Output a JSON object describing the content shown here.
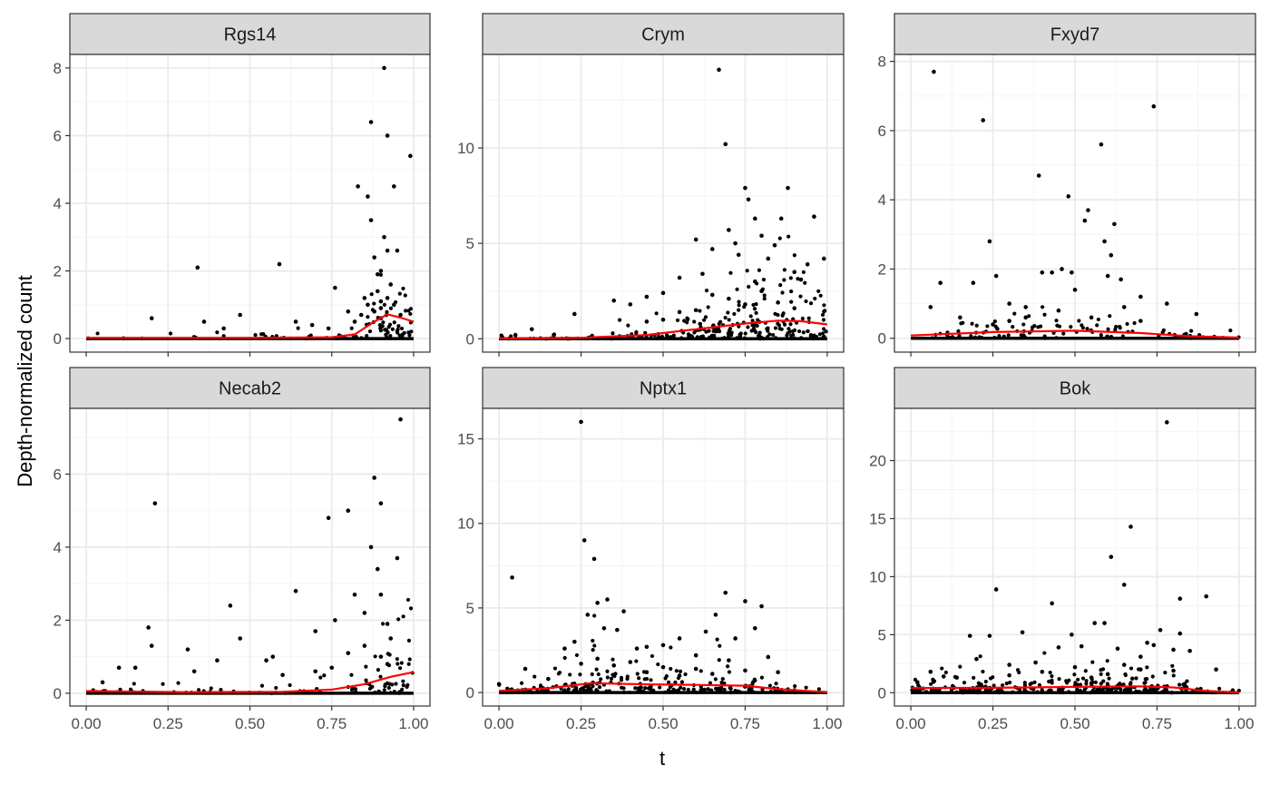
{
  "figure": {
    "ylabel": "Depth-normalized count",
    "xlabel": "t",
    "colors": {
      "points": "#000000",
      "smooth": "#ff0000",
      "strip": "#d9d9d9",
      "grid_major": "#ebebeb",
      "grid_minor": "#f5f5f5",
      "border": "#333333"
    }
  },
  "chart_data": [
    {
      "type": "scatter",
      "panel": "Rgs14",
      "xlim": [
        0,
        1
      ],
      "ylim": [
        -0.4,
        8.4
      ],
      "x_ticks": [
        0,
        0.25,
        0.5,
        0.75,
        1
      ],
      "x_tick_labels": [
        "0.00",
        "0.25",
        "0.50",
        "0.75",
        "1.00"
      ],
      "y_ticks": [
        0,
        2,
        4,
        6,
        8
      ],
      "y_tick_labels": [
        "0",
        "2",
        "4",
        "6",
        "8"
      ],
      "x_axis_labels_shown": false,
      "points": [
        [
          0.2,
          0.6
        ],
        [
          0.34,
          2.1
        ],
        [
          0.36,
          0.5
        ],
        [
          0.42,
          0.3
        ],
        [
          0.47,
          0.7
        ],
        [
          0.59,
          2.2
        ],
        [
          0.64,
          0.5
        ],
        [
          0.69,
          0.4
        ],
        [
          0.74,
          0.3
        ],
        [
          0.76,
          1.5
        ],
        [
          0.8,
          0.8
        ],
        [
          0.82,
          0.5
        ],
        [
          0.83,
          4.5
        ],
        [
          0.85,
          1.2
        ],
        [
          0.86,
          4.2
        ],
        [
          0.87,
          6.4
        ],
        [
          0.87,
          3.5
        ],
        [
          0.88,
          2.4
        ],
        [
          0.89,
          1.9
        ],
        [
          0.89,
          1.4
        ],
        [
          0.9,
          1.1
        ],
        [
          0.9,
          0.9
        ],
        [
          0.91,
          8.0
        ],
        [
          0.91,
          3.0
        ],
        [
          0.92,
          6.0
        ],
        [
          0.92,
          2.6
        ],
        [
          0.93,
          1.6
        ],
        [
          0.94,
          4.5
        ],
        [
          0.94,
          1.0
        ],
        [
          0.95,
          2.6
        ],
        [
          0.96,
          0.7
        ],
        [
          0.99,
          5.4
        ],
        [
          0.88,
          0.8
        ],
        [
          0.9,
          0.6
        ],
        [
          0.86,
          1.0
        ],
        [
          0.84,
          0.7
        ],
        [
          0.9,
          2.0
        ],
        [
          0.92,
          1.2
        ]
      ],
      "smooth": [
        [
          0.0,
          0.02
        ],
        [
          0.5,
          0.02
        ],
        [
          0.75,
          0.04
        ],
        [
          0.82,
          0.12
        ],
        [
          0.88,
          0.5
        ],
        [
          0.92,
          0.72
        ],
        [
          0.96,
          0.62
        ],
        [
          1.0,
          0.5
        ]
      ]
    },
    {
      "type": "scatter",
      "panel": "Crym",
      "xlim": [
        0,
        1
      ],
      "ylim": [
        -0.7,
        14.9
      ],
      "x_ticks": [
        0,
        0.25,
        0.5,
        0.75,
        1
      ],
      "x_tick_labels": [
        "0.00",
        "0.25",
        "0.50",
        "0.75",
        "1.00"
      ],
      "y_ticks": [
        0,
        5,
        10
      ],
      "y_tick_labels": [
        "0",
        "5",
        "10"
      ],
      "x_axis_labels_shown": false,
      "points": [
        [
          0.05,
          0.2
        ],
        [
          0.1,
          0.5
        ],
        [
          0.23,
          1.3
        ],
        [
          0.35,
          2.0
        ],
        [
          0.4,
          1.8
        ],
        [
          0.45,
          2.2
        ],
        [
          0.5,
          2.4
        ],
        [
          0.55,
          3.2
        ],
        [
          0.6,
          5.2
        ],
        [
          0.62,
          3.4
        ],
        [
          0.65,
          4.7
        ],
        [
          0.67,
          14.1
        ],
        [
          0.69,
          10.2
        ],
        [
          0.7,
          5.7
        ],
        [
          0.72,
          5.0
        ],
        [
          0.73,
          4.4
        ],
        [
          0.75,
          7.9
        ],
        [
          0.76,
          7.3
        ],
        [
          0.78,
          6.3
        ],
        [
          0.8,
          5.4
        ],
        [
          0.82,
          4.2
        ],
        [
          0.84,
          4.9
        ],
        [
          0.86,
          6.3
        ],
        [
          0.88,
          7.9
        ],
        [
          0.9,
          3.5
        ],
        [
          0.92,
          3.1
        ],
        [
          0.94,
          3.9
        ],
        [
          0.96,
          6.4
        ],
        [
          0.99,
          4.2
        ],
        [
          0.5,
          1.0
        ],
        [
          0.6,
          1.5
        ],
        [
          0.7,
          2.1
        ],
        [
          0.75,
          1.8
        ],
        [
          0.8,
          2.5
        ],
        [
          0.85,
          1.9
        ],
        [
          0.9,
          1.6
        ],
        [
          0.65,
          2.3
        ],
        [
          0.55,
          1.4
        ],
        [
          0.45,
          0.9
        ],
        [
          0.78,
          3.0
        ]
      ],
      "smooth": [
        [
          0.0,
          0.02
        ],
        [
          0.25,
          0.05
        ],
        [
          0.45,
          0.2
        ],
        [
          0.6,
          0.5
        ],
        [
          0.75,
          0.8
        ],
        [
          0.85,
          0.95
        ],
        [
          0.92,
          0.92
        ],
        [
          1.0,
          0.75
        ]
      ]
    },
    {
      "type": "scatter",
      "panel": "Fxyd7",
      "xlim": [
        0,
        1
      ],
      "ylim": [
        -0.4,
        8.2
      ],
      "x_ticks": [
        0,
        0.25,
        0.5,
        0.75,
        1
      ],
      "x_tick_labels": [
        "0.00",
        "0.25",
        "0.50",
        "0.75",
        "1.00"
      ],
      "y_ticks": [
        0,
        2,
        4,
        6,
        8
      ],
      "y_tick_labels": [
        "0",
        "2",
        "4",
        "6",
        "8"
      ],
      "x_axis_labels_shown": false,
      "points": [
        [
          0.07,
          7.7
        ],
        [
          0.09,
          1.6
        ],
        [
          0.06,
          0.9
        ],
        [
          0.15,
          0.6
        ],
        [
          0.19,
          1.6
        ],
        [
          0.22,
          6.3
        ],
        [
          0.24,
          2.8
        ],
        [
          0.26,
          1.8
        ],
        [
          0.3,
          1.0
        ],
        [
          0.35,
          0.9
        ],
        [
          0.39,
          4.7
        ],
        [
          0.4,
          1.9
        ],
        [
          0.43,
          1.9
        ],
        [
          0.46,
          2.0
        ],
        [
          0.48,
          4.1
        ],
        [
          0.49,
          1.9
        ],
        [
          0.53,
          3.4
        ],
        [
          0.54,
          3.7
        ],
        [
          0.58,
          5.6
        ],
        [
          0.59,
          2.8
        ],
        [
          0.6,
          1.8
        ],
        [
          0.61,
          2.4
        ],
        [
          0.62,
          3.3
        ],
        [
          0.64,
          1.7
        ],
        [
          0.7,
          1.2
        ],
        [
          0.74,
          6.7
        ],
        [
          0.78,
          1.0
        ],
        [
          0.87,
          0.7
        ],
        [
          0.3,
          0.5
        ],
        [
          0.45,
          0.8
        ],
        [
          0.5,
          1.4
        ],
        [
          0.55,
          0.6
        ],
        [
          0.65,
          0.9
        ],
        [
          0.7,
          0.5
        ],
        [
          0.25,
          0.4
        ],
        [
          0.35,
          0.6
        ]
      ],
      "smooth": [
        [
          0.0,
          0.08
        ],
        [
          0.25,
          0.18
        ],
        [
          0.5,
          0.22
        ],
        [
          0.7,
          0.15
        ],
        [
          0.85,
          0.06
        ],
        [
          1.0,
          0.02
        ]
      ]
    },
    {
      "type": "scatter",
      "panel": "Necab2",
      "xlim": [
        0,
        1
      ],
      "ylim": [
        -0.35,
        7.8
      ],
      "x_ticks": [
        0,
        0.25,
        0.5,
        0.75,
        1
      ],
      "x_tick_labels": [
        "0.00",
        "0.25",
        "0.50",
        "0.75",
        "1.00"
      ],
      "y_ticks": [
        0,
        2,
        4,
        6
      ],
      "y_tick_labels": [
        "0",
        "2",
        "4",
        "6"
      ],
      "x_axis_labels_shown": true,
      "points": [
        [
          0.05,
          0.3
        ],
        [
          0.1,
          0.7
        ],
        [
          0.15,
          0.7
        ],
        [
          0.19,
          1.8
        ],
        [
          0.2,
          1.3
        ],
        [
          0.21,
          5.2
        ],
        [
          0.31,
          1.2
        ],
        [
          0.33,
          0.6
        ],
        [
          0.4,
          0.9
        ],
        [
          0.44,
          2.4
        ],
        [
          0.47,
          1.5
        ],
        [
          0.55,
          0.9
        ],
        [
          0.57,
          1.0
        ],
        [
          0.64,
          2.8
        ],
        [
          0.7,
          1.7
        ],
        [
          0.74,
          4.8
        ],
        [
          0.76,
          2.0
        ],
        [
          0.8,
          5.0
        ],
        [
          0.82,
          2.7
        ],
        [
          0.85,
          2.2
        ],
        [
          0.87,
          4.0
        ],
        [
          0.88,
          5.9
        ],
        [
          0.9,
          5.2
        ],
        [
          0.89,
          3.4
        ],
        [
          0.9,
          2.7
        ],
        [
          0.92,
          1.9
        ],
        [
          0.93,
          1.5
        ],
        [
          0.95,
          3.7
        ],
        [
          0.96,
          7.5
        ],
        [
          0.9,
          1.0
        ],
        [
          0.85,
          1.3
        ],
        [
          0.8,
          1.1
        ],
        [
          0.92,
          0.8
        ],
        [
          0.75,
          0.7
        ],
        [
          0.7,
          0.6
        ],
        [
          0.6,
          0.5
        ]
      ],
      "smooth": [
        [
          0.0,
          0.06
        ],
        [
          0.3,
          0.03
        ],
        [
          0.6,
          0.04
        ],
        [
          0.75,
          0.1
        ],
        [
          0.85,
          0.25
        ],
        [
          0.93,
          0.45
        ],
        [
          1.0,
          0.58
        ]
      ]
    },
    {
      "type": "scatter",
      "panel": "Nptx1",
      "xlim": [
        0,
        1
      ],
      "ylim": [
        -0.8,
        16.8
      ],
      "x_ticks": [
        0,
        0.25,
        0.5,
        0.75,
        1
      ],
      "x_tick_labels": [
        "0.00",
        "0.25",
        "0.50",
        "0.75",
        "1.00"
      ],
      "y_ticks": [
        0,
        5,
        10,
        15
      ],
      "y_tick_labels": [
        "0",
        "5",
        "10",
        "15"
      ],
      "x_axis_labels_shown": true,
      "points": [
        [
          0.0,
          0.5
        ],
        [
          0.04,
          6.8
        ],
        [
          0.08,
          1.4
        ],
        [
          0.15,
          0.8
        ],
        [
          0.2,
          2.6
        ],
        [
          0.23,
          3.0
        ],
        [
          0.25,
          16.0
        ],
        [
          0.26,
          9.0
        ],
        [
          0.27,
          4.6
        ],
        [
          0.29,
          7.9
        ],
        [
          0.3,
          5.3
        ],
        [
          0.32,
          3.8
        ],
        [
          0.33,
          5.5
        ],
        [
          0.36,
          3.7
        ],
        [
          0.38,
          4.8
        ],
        [
          0.42,
          2.6
        ],
        [
          0.45,
          2.7
        ],
        [
          0.5,
          2.8
        ],
        [
          0.55,
          3.2
        ],
        [
          0.6,
          2.2
        ],
        [
          0.63,
          3.6
        ],
        [
          0.66,
          4.6
        ],
        [
          0.69,
          5.9
        ],
        [
          0.72,
          3.2
        ],
        [
          0.75,
          5.4
        ],
        [
          0.78,
          3.8
        ],
        [
          0.8,
          5.1
        ],
        [
          0.82,
          2.1
        ],
        [
          0.85,
          1.2
        ],
        [
          0.3,
          2.0
        ],
        [
          0.4,
          1.8
        ],
        [
          0.5,
          1.5
        ],
        [
          0.6,
          1.4
        ],
        [
          0.7,
          1.9
        ],
        [
          0.25,
          1.7
        ],
        [
          0.35,
          1.6
        ],
        [
          0.45,
          1.2
        ],
        [
          0.55,
          1.0
        ],
        [
          0.65,
          1.1
        ],
        [
          0.75,
          1.3
        ]
      ],
      "smooth": [
        [
          0.0,
          0.1
        ],
        [
          0.15,
          0.25
        ],
        [
          0.28,
          0.55
        ],
        [
          0.45,
          0.48
        ],
        [
          0.6,
          0.45
        ],
        [
          0.75,
          0.4
        ],
        [
          0.85,
          0.2
        ],
        [
          1.0,
          0.02
        ]
      ]
    },
    {
      "type": "scatter",
      "panel": "Bok",
      "xlim": [
        0,
        1
      ],
      "ylim": [
        -1.15,
        24.5
      ],
      "x_ticks": [
        0,
        0.25,
        0.5,
        0.75,
        1
      ],
      "x_tick_labels": [
        "0.00",
        "0.25",
        "0.50",
        "0.75",
        "1.00"
      ],
      "y_ticks": [
        0,
        5,
        10,
        15,
        20
      ],
      "y_tick_labels": [
        "0",
        "5",
        "10",
        "15",
        "20"
      ],
      "x_axis_labels_shown": true,
      "points": [
        [
          0.02,
          0.9
        ],
        [
          0.06,
          1.8
        ],
        [
          0.1,
          1.4
        ],
        [
          0.14,
          1.3
        ],
        [
          0.18,
          4.9
        ],
        [
          0.2,
          2.9
        ],
        [
          0.24,
          4.9
        ],
        [
          0.26,
          8.9
        ],
        [
          0.3,
          2.4
        ],
        [
          0.34,
          5.2
        ],
        [
          0.38,
          2.6
        ],
        [
          0.43,
          7.7
        ],
        [
          0.45,
          3.9
        ],
        [
          0.49,
          5.0
        ],
        [
          0.52,
          4.0
        ],
        [
          0.56,
          6.0
        ],
        [
          0.59,
          6.0
        ],
        [
          0.61,
          11.7
        ],
        [
          0.63,
          3.8
        ],
        [
          0.65,
          9.3
        ],
        [
          0.67,
          14.3
        ],
        [
          0.7,
          3.1
        ],
        [
          0.72,
          4.3
        ],
        [
          0.74,
          4.1
        ],
        [
          0.76,
          5.4
        ],
        [
          0.78,
          23.3
        ],
        [
          0.8,
          3.7
        ],
        [
          0.82,
          8.1
        ],
        [
          0.82,
          5.1
        ],
        [
          0.85,
          3.6
        ],
        [
          0.9,
          8.3
        ],
        [
          0.93,
          2.0
        ],
        [
          0.4,
          1.8
        ],
        [
          0.5,
          2.2
        ],
        [
          0.6,
          1.6
        ],
        [
          0.7,
          2.0
        ],
        [
          0.8,
          1.9
        ],
        [
          0.3,
          1.5
        ],
        [
          0.55,
          1.3
        ],
        [
          0.65,
          2.4
        ]
      ],
      "smooth": [
        [
          0.0,
          0.4
        ],
        [
          0.25,
          0.42
        ],
        [
          0.5,
          0.5
        ],
        [
          0.7,
          0.55
        ],
        [
          0.8,
          0.45
        ],
        [
          0.9,
          0.15
        ],
        [
          1.0,
          0.02
        ]
      ]
    }
  ]
}
